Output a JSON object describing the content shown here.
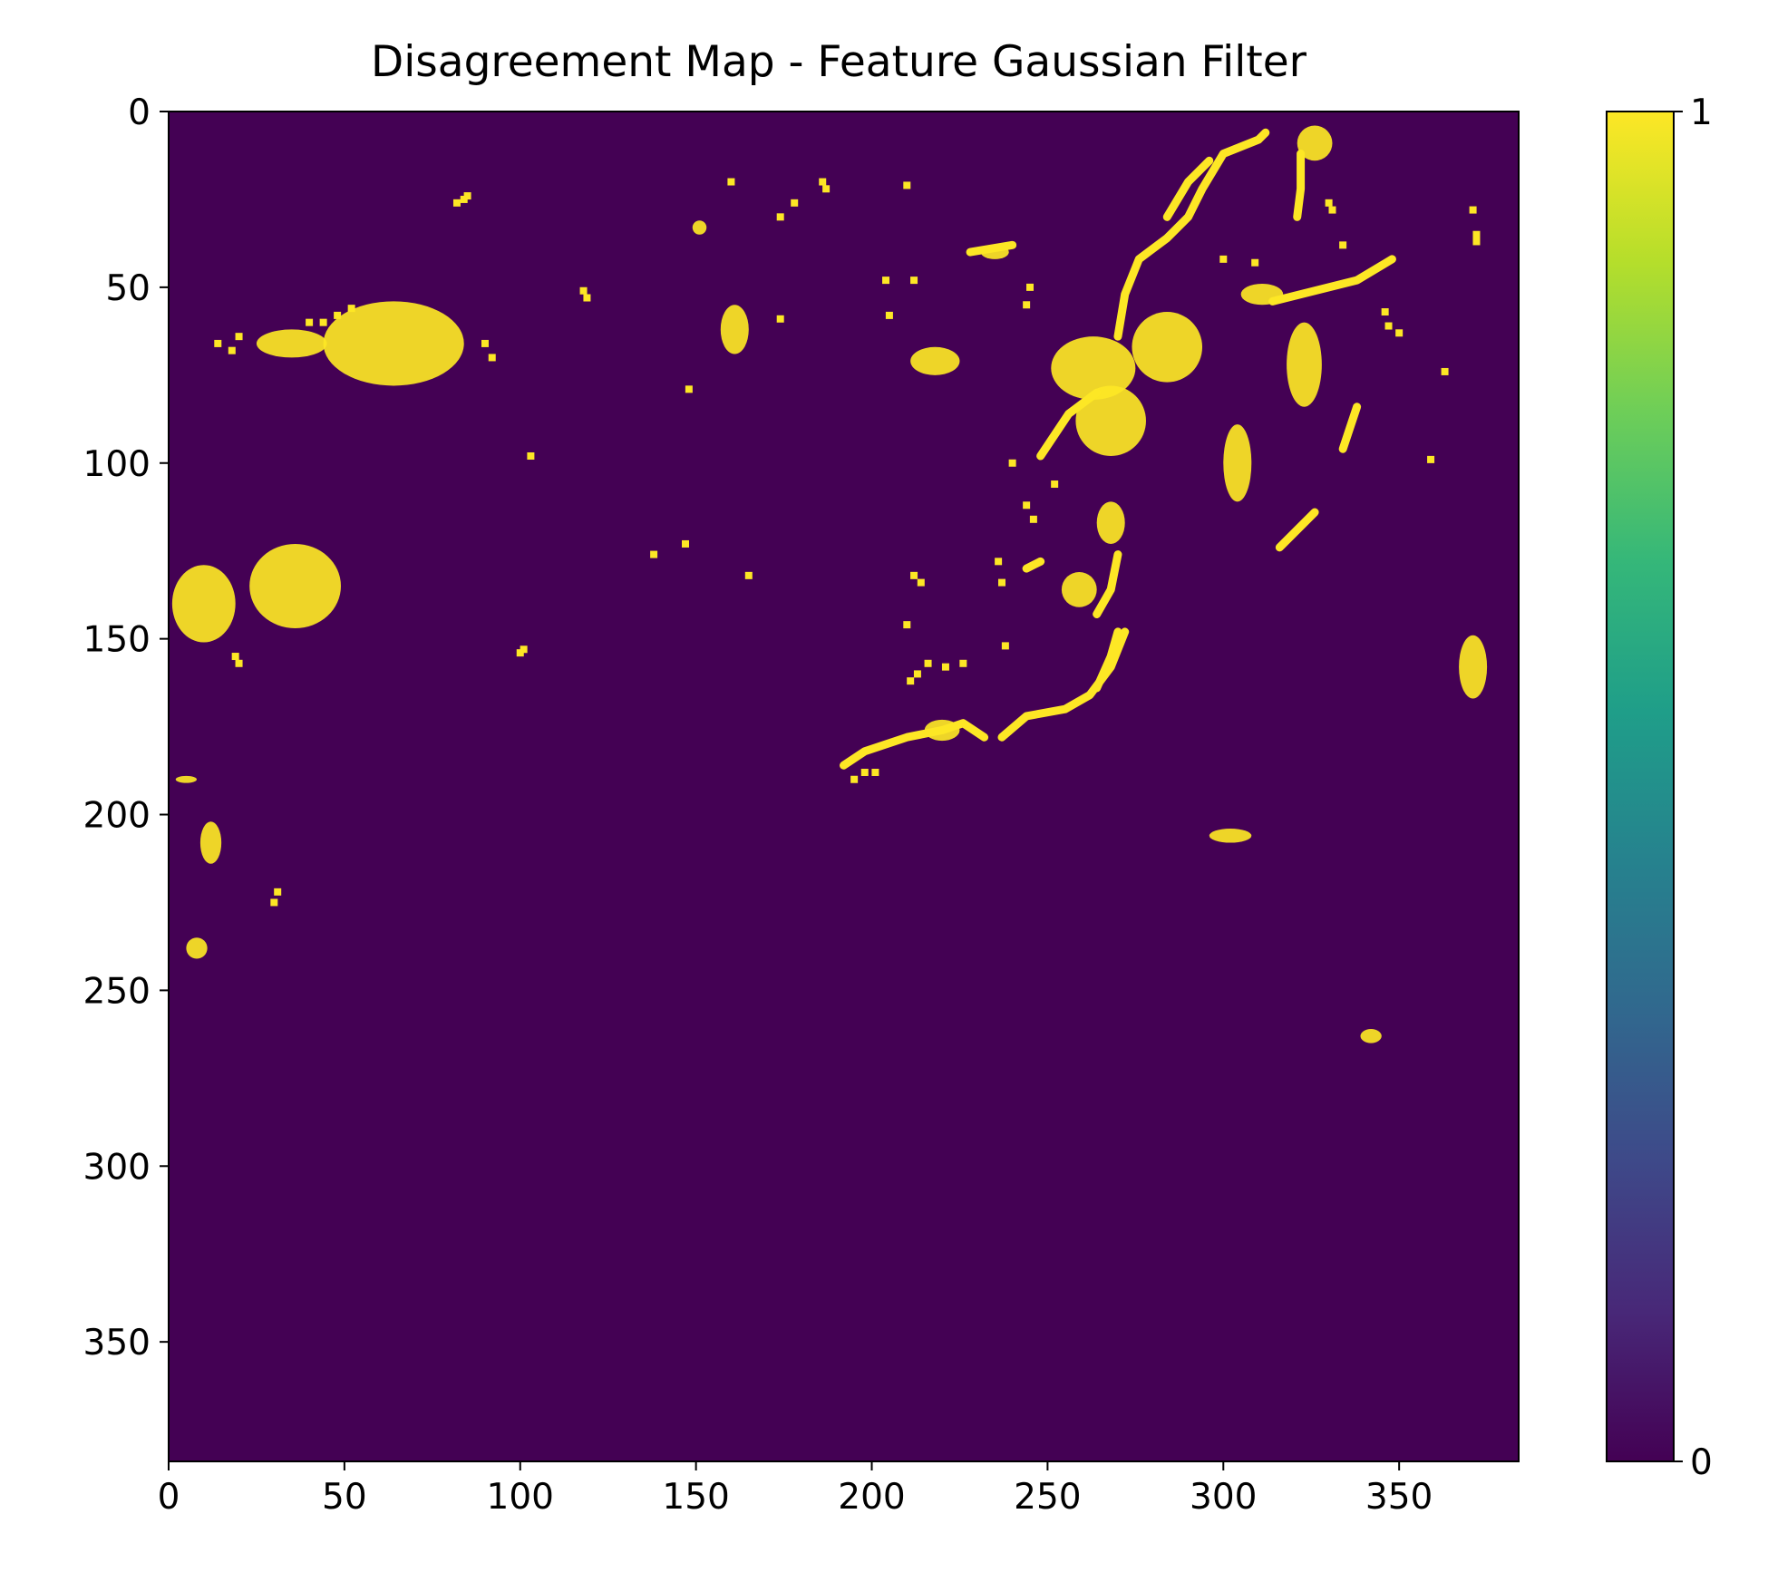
{
  "chart_data": {
    "type": "heatmap",
    "title": "Disagreement Map - Feature Gaussian Filter",
    "xlabel": "",
    "ylabel": "",
    "xlim": [
      0,
      384
    ],
    "ylim": [
      384,
      0
    ],
    "x_ticks": [
      0,
      50,
      100,
      150,
      200,
      250,
      300,
      350
    ],
    "y_ticks": [
      0,
      50,
      100,
      150,
      200,
      250,
      300,
      350
    ],
    "x_tick_labels": [
      "0",
      "50",
      "100",
      "150",
      "200",
      "250",
      "300",
      "350"
    ],
    "y_tick_labels": [
      "0",
      "50",
      "100",
      "150",
      "200",
      "250",
      "300",
      "350"
    ],
    "values_domain": [
      0,
      1
    ],
    "colormap": "viridis",
    "background_color": "#440154",
    "foreground_color": "#fde725",
    "colorbar": {
      "ticks": [
        0,
        1
      ],
      "tick_labels": [
        "0",
        "1"
      ],
      "stops": [
        "#440154",
        "#482878",
        "#3e4989",
        "#31688e",
        "#26828e",
        "#1f9e89",
        "#35b779",
        "#6ece58",
        "#b5de2b",
        "#fde725"
      ]
    },
    "regions_value_1": [
      {
        "shape": "blob",
        "cx": 64,
        "cy": 66,
        "rx": 20,
        "ry": 12
      },
      {
        "shape": "blob",
        "cx": 35,
        "cy": 66,
        "rx": 10,
        "ry": 4
      },
      {
        "shape": "blob",
        "cx": 36,
        "cy": 135,
        "rx": 13,
        "ry": 12
      },
      {
        "shape": "blob",
        "cx": 10,
        "cy": 140,
        "rx": 9,
        "ry": 11
      },
      {
        "shape": "blob",
        "cx": 12,
        "cy": 208,
        "rx": 3,
        "ry": 6
      },
      {
        "shape": "blob",
        "cx": 5,
        "cy": 190,
        "rx": 3,
        "ry": 1
      },
      {
        "shape": "blob",
        "cx": 8,
        "cy": 238,
        "rx": 3,
        "ry": 3
      },
      {
        "shape": "blob",
        "cx": 161,
        "cy": 62,
        "rx": 4,
        "ry": 7
      },
      {
        "shape": "blob",
        "cx": 151,
        "cy": 33,
        "rx": 2,
        "ry": 2
      },
      {
        "shape": "blob",
        "cx": 218,
        "cy": 71,
        "rx": 7,
        "ry": 4
      },
      {
        "shape": "blob",
        "cx": 235,
        "cy": 40,
        "rx": 4,
        "ry": 2
      },
      {
        "shape": "blob",
        "cx": 263,
        "cy": 73,
        "rx": 12,
        "ry": 9
      },
      {
        "shape": "blob",
        "cx": 268,
        "cy": 88,
        "rx": 10,
        "ry": 10
      },
      {
        "shape": "blob",
        "cx": 284,
        "cy": 67,
        "rx": 10,
        "ry": 10
      },
      {
        "shape": "blob",
        "cx": 268,
        "cy": 117,
        "rx": 4,
        "ry": 6
      },
      {
        "shape": "blob",
        "cx": 259,
        "cy": 136,
        "rx": 5,
        "ry": 5
      },
      {
        "shape": "blob",
        "cx": 304,
        "cy": 100,
        "rx": 4,
        "ry": 11
      },
      {
        "shape": "blob",
        "cx": 311,
        "cy": 52,
        "rx": 6,
        "ry": 3
      },
      {
        "shape": "blob",
        "cx": 323,
        "cy": 72,
        "rx": 5,
        "ry": 12
      },
      {
        "shape": "blob",
        "cx": 326,
        "cy": 9,
        "rx": 5,
        "ry": 5
      },
      {
        "shape": "blob",
        "cx": 371,
        "cy": 158,
        "rx": 4,
        "ry": 9
      },
      {
        "shape": "blob",
        "cx": 342,
        "cy": 263,
        "rx": 3,
        "ry": 2
      },
      {
        "shape": "blob",
        "cx": 302,
        "cy": 206,
        "rx": 6,
        "ry": 2
      },
      {
        "shape": "blob",
        "cx": 220,
        "cy": 176,
        "rx": 5,
        "ry": 3
      },
      {
        "shape": "path",
        "points": [
          [
            192,
            186
          ],
          [
            198,
            182
          ],
          [
            210,
            178
          ],
          [
            220,
            176
          ],
          [
            226,
            174
          ],
          [
            232,
            178
          ]
        ]
      },
      {
        "shape": "path",
        "points": [
          [
            237,
            178
          ],
          [
            244,
            172
          ],
          [
            255,
            170
          ],
          [
            262,
            166
          ],
          [
            268,
            158
          ],
          [
            272,
            148
          ]
        ]
      },
      {
        "shape": "path",
        "points": [
          [
            264,
            164
          ],
          [
            268,
            155
          ],
          [
            270,
            148
          ]
        ]
      },
      {
        "shape": "path",
        "points": [
          [
            270,
            126
          ],
          [
            268,
            136
          ],
          [
            264,
            143
          ]
        ]
      },
      {
        "shape": "path",
        "points": [
          [
            248,
            98
          ],
          [
            256,
            86
          ],
          [
            264,
            80
          ]
        ]
      },
      {
        "shape": "path",
        "points": [
          [
            270,
            64
          ],
          [
            272,
            52
          ],
          [
            276,
            42
          ],
          [
            284,
            36
          ],
          [
            290,
            30
          ],
          [
            294,
            22
          ],
          [
            300,
            12
          ],
          [
            310,
            8
          ],
          [
            312,
            6
          ]
        ]
      },
      {
        "shape": "path",
        "points": [
          [
            284,
            30
          ],
          [
            290,
            20
          ],
          [
            296,
            14
          ]
        ]
      },
      {
        "shape": "path",
        "points": [
          [
            314,
            54
          ],
          [
            322,
            52
          ],
          [
            330,
            50
          ],
          [
            338,
            48
          ],
          [
            348,
            42
          ]
        ]
      },
      {
        "shape": "path",
        "points": [
          [
            322,
            12
          ],
          [
            322,
            22
          ],
          [
            321,
            30
          ]
        ]
      },
      {
        "shape": "path",
        "points": [
          [
            334,
            96
          ],
          [
            336,
            90
          ],
          [
            338,
            84
          ]
        ]
      },
      {
        "shape": "path",
        "points": [
          [
            316,
            124
          ],
          [
            320,
            120
          ],
          [
            326,
            114
          ]
        ]
      },
      {
        "shape": "path",
        "points": [
          [
            244,
            130
          ],
          [
            248,
            128
          ]
        ]
      },
      {
        "shape": "path",
        "points": [
          [
            228,
            40
          ],
          [
            240,
            38
          ]
        ]
      }
    ],
    "specks_value_1": [
      [
        84,
        25
      ],
      [
        85,
        24
      ],
      [
        82,
        26
      ],
      [
        118,
        51
      ],
      [
        119,
        53
      ],
      [
        103,
        98
      ],
      [
        138,
        126
      ],
      [
        147,
        123
      ],
      [
        165,
        132
      ],
      [
        101,
        153
      ],
      [
        100,
        154
      ],
      [
        210,
        146
      ],
      [
        212,
        132
      ],
      [
        214,
        134
      ],
      [
        213,
        160
      ],
      [
        211,
        162
      ],
      [
        216,
        157
      ],
      [
        221,
        158
      ],
      [
        226,
        157
      ],
      [
        238,
        152
      ],
      [
        244,
        55
      ],
      [
        245,
        50
      ],
      [
        212,
        48
      ],
      [
        204,
        48
      ],
      [
        205,
        58
      ],
      [
        148,
        79
      ],
      [
        174,
        59
      ],
      [
        174,
        30
      ],
      [
        178,
        26
      ],
      [
        160,
        20
      ],
      [
        186,
        20
      ],
      [
        187,
        22
      ],
      [
        210,
        21
      ],
      [
        240,
        100
      ],
      [
        244,
        112
      ],
      [
        246,
        116
      ],
      [
        252,
        106
      ],
      [
        236,
        128
      ],
      [
        237,
        134
      ],
      [
        300,
        42
      ],
      [
        309,
        43
      ],
      [
        350,
        63
      ],
      [
        363,
        74
      ],
      [
        359,
        99
      ],
      [
        347,
        61
      ],
      [
        346,
        57
      ],
      [
        371,
        28
      ],
      [
        372,
        35
      ],
      [
        372,
        37
      ],
      [
        334,
        38
      ],
      [
        330,
        26
      ],
      [
        331,
        28
      ],
      [
        19,
        155
      ],
      [
        20,
        157
      ],
      [
        31,
        222
      ],
      [
        30,
        225
      ],
      [
        90,
        66
      ],
      [
        92,
        70
      ],
      [
        18,
        68
      ],
      [
        20,
        64
      ],
      [
        14,
        66
      ],
      [
        40,
        60
      ],
      [
        44,
        60
      ],
      [
        48,
        58
      ],
      [
        52,
        56
      ],
      [
        195,
        190
      ],
      [
        198,
        188
      ],
      [
        201,
        188
      ]
    ]
  }
}
